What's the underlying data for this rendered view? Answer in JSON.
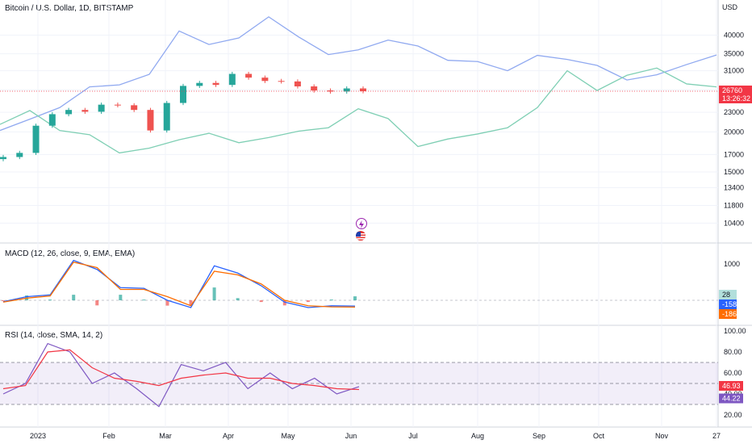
{
  "header": {
    "title": "Bitcoin / U.S. Dollar, 1D, BITSTAMP",
    "currency": "USD"
  },
  "price_axis": {
    "ticks": [
      "40000",
      "35000",
      "31000",
      "27000",
      "23000",
      "20000",
      "17000",
      "15000",
      "13400",
      "11800",
      "10400"
    ],
    "last_price": "26760",
    "countdown": "13:26:32"
  },
  "macd": {
    "title": "MACD (12, 26, close, 9, EMA, EMA)",
    "axis_tick": "1000",
    "hist_label": "28",
    "macd_label": "-158",
    "signal_label": "-186"
  },
  "rsi": {
    "title": "RSI (14, close, SMA, 14, 2)",
    "ticks": [
      "100.00",
      "80.00",
      "60.00",
      "40.00",
      "20.00"
    ],
    "rsi_label": "46.93",
    "sma_label": "44.22"
  },
  "time_axis": {
    "labels": [
      "2023",
      "Feb",
      "Mar",
      "Apr",
      "May",
      "Jun",
      "Jul",
      "Aug",
      "Sep",
      "Oct",
      "Nov",
      "27"
    ]
  },
  "colors": {
    "up": "#26a69a",
    "down": "#ef5350",
    "macd": "#2962ff",
    "signal": "#ff6d00",
    "rsi": "#7e57c2",
    "rsi_sma": "#f23645",
    "overlay_blue": "#90a9f0",
    "overlay_green": "#7fcfb4",
    "price_line": "#f23645"
  },
  "icons": [
    "lightning-icon",
    "us-flag-icon"
  ],
  "chart_data": [
    {
      "type": "candlestick",
      "title": "Bitcoin / U.S. Dollar, 1D, BITSTAMP",
      "ylabel": "USD",
      "y_scale": "log",
      "ylim": [
        9500,
        48000
      ],
      "x": [
        "2023-01-01",
        "2023-01-08",
        "2023-01-15",
        "2023-01-22",
        "2023-01-29",
        "2023-02-05",
        "2023-02-12",
        "2023-02-19",
        "2023-02-26",
        "2023-03-05",
        "2023-03-12",
        "2023-03-19",
        "2023-03-26",
        "2023-04-02",
        "2023-04-09",
        "2023-04-16",
        "2023-04-23",
        "2023-04-30",
        "2023-05-07",
        "2023-05-14",
        "2023-05-21",
        "2023-05-28",
        "2023-06-04"
      ],
      "close": [
        16700,
        17200,
        20900,
        22700,
        23400,
        23100,
        24300,
        24200,
        23400,
        20200,
        24600,
        27800,
        28400,
        28000,
        30300,
        29500,
        28800,
        28700,
        27700,
        26900,
        26700,
        27300,
        26760
      ],
      "overlays": [
        {
          "name": "blue overlay",
          "values": [
            20200,
            21900,
            23800,
            27600,
            28000,
            30200,
            41200,
            37400,
            39200,
            45600,
            39500,
            34800,
            36000,
            38600,
            37000,
            33400,
            33100,
            31000,
            34600,
            33600,
            32200,
            29000,
            30100,
            32400,
            34700
          ]
        },
        {
          "name": "green overlay",
          "values": [
            21100,
            23300,
            20200,
            19600,
            17200,
            17800,
            18900,
            19800,
            18500,
            19200,
            20100,
            20600,
            23600,
            22000,
            18000,
            19000,
            19700,
            20600,
            23800,
            31000,
            26900,
            30000,
            31600,
            28200,
            27600
          ]
        }
      ],
      "last_price": 26760
    },
    {
      "type": "line",
      "title": "MACD (12, 26, close, 9, EMA, EMA)",
      "series": [
        {
          "name": "MACD",
          "values": [
            -40,
            100,
            150,
            1100,
            850,
            350,
            330,
            0,
            -200,
            950,
            750,
            400,
            -50,
            -200,
            -150,
            -158
          ]
        },
        {
          "name": "Signal",
          "values": [
            -50,
            60,
            120,
            1050,
            900,
            300,
            300,
            100,
            -150,
            800,
            700,
            450,
            0,
            -150,
            -180,
            -186
          ]
        }
      ],
      "histogram_last": 28
    },
    {
      "type": "line",
      "title": "RSI (14, close, SMA, 14, 2)",
      "ylim": [
        20,
        100
      ],
      "series": [
        {
          "name": "RSI",
          "values": [
            40,
            50,
            88,
            80,
            50,
            60,
            45,
            28,
            68,
            62,
            70,
            45,
            60,
            45,
            55,
            40,
            46.93
          ]
        },
        {
          "name": "RSI SMA",
          "values": [
            45,
            48,
            80,
            82,
            65,
            55,
            52,
            48,
            55,
            58,
            60,
            55,
            55,
            50,
            48,
            45,
            44.22
          ]
        }
      ],
      "bands": [
        30,
        70
      ]
    }
  ]
}
